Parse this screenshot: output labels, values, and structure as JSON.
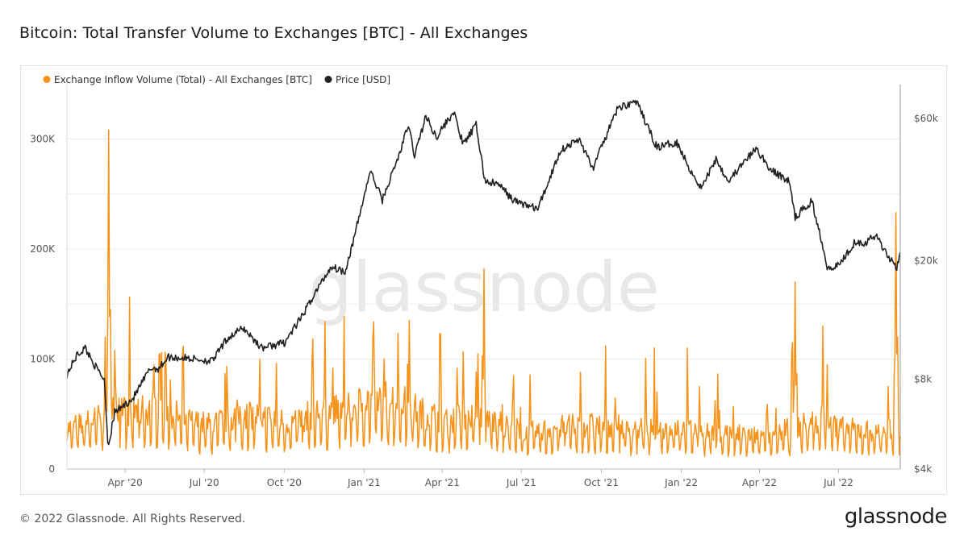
{
  "title": "Bitcoin: Total Transfer Volume to Exchanges [BTC] - All Exchanges",
  "footer": {
    "copyright": "© 2022 Glassnode. All Rights Reserved.",
    "logo_text": "glassnode"
  },
  "watermark": "glassnode",
  "colors": {
    "inflow": "#f7931a",
    "price": "#222222",
    "grid": "#ececec",
    "axis": "#bbbbbb"
  },
  "chart_data": {
    "type": "line",
    "title": "Bitcoin: Total Transfer Volume to Exchanges [BTC] - All Exchanges",
    "legend_position": "top-left",
    "grid": true,
    "x_range": [
      "2020-01-25",
      "2022-09-10"
    ],
    "x_ticks": [
      {
        "date": "2020-04-01",
        "label": "Apr '20"
      },
      {
        "date": "2020-07-01",
        "label": "Jul '20"
      },
      {
        "date": "2020-10-01",
        "label": "Oct '20"
      },
      {
        "date": "2021-01-01",
        "label": "Jan '21"
      },
      {
        "date": "2021-04-01",
        "label": "Apr '21"
      },
      {
        "date": "2021-07-01",
        "label": "Jul '21"
      },
      {
        "date": "2021-10-01",
        "label": "Oct '21"
      },
      {
        "date": "2022-01-01",
        "label": "Jan '22"
      },
      {
        "date": "2022-04-01",
        "label": "Apr '22"
      },
      {
        "date": "2022-07-01",
        "label": "Jul '22"
      }
    ],
    "y_left": {
      "scale": "linear",
      "range": [
        0,
        345000
      ],
      "ticks": [
        {
          "value": 0,
          "label": "0"
        },
        {
          "value": 100000,
          "label": "100K"
        },
        {
          "value": 200000,
          "label": "200K"
        },
        {
          "value": 300000,
          "label": "300K"
        }
      ]
    },
    "y_right": {
      "scale": "log",
      "range": [
        4000,
        75000
      ],
      "ticks": [
        {
          "value": 4000,
          "label": "$4k"
        },
        {
          "value": 8000,
          "label": "$8k"
        },
        {
          "value": 20000,
          "label": "$20k"
        },
        {
          "value": 60000,
          "label": "$60k"
        }
      ]
    },
    "series": [
      {
        "name": "Exchange Inflow Volume (Total) - All Exchanges [BTC]",
        "axis": "left",
        "color": "#f7931a",
        "base_points": [
          [
            "2020-01-25",
            35000
          ],
          [
            "2020-02-15",
            40000
          ],
          [
            "2020-03-05",
            45000
          ],
          [
            "2020-03-20",
            60000
          ],
          [
            "2020-04-10",
            48000
          ],
          [
            "2020-05-10",
            55000
          ],
          [
            "2020-06-10",
            42000
          ],
          [
            "2020-07-10",
            38000
          ],
          [
            "2020-08-10",
            48000
          ],
          [
            "2020-09-10",
            45000
          ],
          [
            "2020-10-10",
            40000
          ],
          [
            "2020-11-10",
            50000
          ],
          [
            "2020-12-10",
            50000
          ],
          [
            "2021-01-10",
            62000
          ],
          [
            "2021-02-10",
            60000
          ],
          [
            "2021-03-10",
            48000
          ],
          [
            "2021-04-10",
            42000
          ],
          [
            "2021-05-10",
            50000
          ],
          [
            "2021-06-10",
            38000
          ],
          [
            "2021-07-10",
            32000
          ],
          [
            "2021-08-10",
            36000
          ],
          [
            "2021-09-10",
            38000
          ],
          [
            "2021-10-10",
            38000
          ],
          [
            "2021-11-10",
            35000
          ],
          [
            "2021-12-10",
            36000
          ],
          [
            "2022-01-10",
            35000
          ],
          [
            "2022-02-10",
            33000
          ],
          [
            "2022-03-10",
            30000
          ],
          [
            "2022-04-10",
            28000
          ],
          [
            "2022-05-10",
            36000
          ],
          [
            "2022-06-10",
            42000
          ],
          [
            "2022-07-10",
            35000
          ],
          [
            "2022-08-10",
            33000
          ],
          [
            "2022-09-10",
            35000
          ]
        ],
        "spikes": [
          [
            "2020-03-09",
            120000
          ],
          [
            "2020-03-13",
            308000
          ],
          [
            "2020-03-15",
            145000
          ],
          [
            "2020-03-20",
            108000
          ],
          [
            "2020-05-11",
            105000
          ],
          [
            "2020-05-18",
            98000
          ],
          [
            "2020-09-03",
            100000
          ],
          [
            "2020-11-26",
            92000
          ],
          [
            "2021-01-11",
            118000
          ],
          [
            "2021-02-22",
            135000
          ],
          [
            "2021-04-18",
            92000
          ],
          [
            "2021-05-12",
            105000
          ],
          [
            "2021-05-19",
            182000
          ],
          [
            "2021-06-22",
            85000
          ],
          [
            "2021-09-07",
            88000
          ],
          [
            "2021-12-04",
            70000
          ],
          [
            "2022-01-22",
            75000
          ],
          [
            "2022-05-09",
            115000
          ],
          [
            "2022-05-12",
            170000
          ],
          [
            "2022-06-13",
            130000
          ],
          [
            "2022-06-18",
            95000
          ],
          [
            "2022-09-05",
            233000
          ],
          [
            "2022-09-07",
            120000
          ]
        ]
      },
      {
        "name": "Price [USD]",
        "axis": "right",
        "color": "#222222",
        "points": [
          [
            "2020-01-25",
            8300
          ],
          [
            "2020-02-05",
            9600
          ],
          [
            "2020-02-15",
            10200
          ],
          [
            "2020-02-28",
            8700
          ],
          [
            "2020-03-08",
            8000
          ],
          [
            "2020-03-12",
            5000
          ],
          [
            "2020-03-13",
            4850
          ],
          [
            "2020-03-20",
            6200
          ],
          [
            "2020-04-10",
            6900
          ],
          [
            "2020-04-30",
            8700
          ],
          [
            "2020-05-10",
            8700
          ],
          [
            "2020-05-20",
            9500
          ],
          [
            "2020-06-15",
            9400
          ],
          [
            "2020-07-10",
            9200
          ],
          [
            "2020-07-28",
            11000
          ],
          [
            "2020-08-15",
            11900
          ],
          [
            "2020-09-05",
            10200
          ],
          [
            "2020-10-01",
            10600
          ],
          [
            "2020-10-21",
            12900
          ],
          [
            "2020-11-05",
            15500
          ],
          [
            "2020-11-24",
            19100
          ],
          [
            "2020-12-10",
            18400
          ],
          [
            "2020-12-20",
            23500
          ],
          [
            "2021-01-08",
            40000
          ],
          [
            "2021-01-22",
            32000
          ],
          [
            "2021-02-10",
            45000
          ],
          [
            "2021-02-21",
            57000
          ],
          [
            "2021-02-28",
            45000
          ],
          [
            "2021-03-13",
            61000
          ],
          [
            "2021-03-25",
            52000
          ],
          [
            "2021-04-14",
            63000
          ],
          [
            "2021-04-25",
            49000
          ],
          [
            "2021-05-10",
            57000
          ],
          [
            "2021-05-20",
            37000
          ],
          [
            "2021-06-05",
            36000
          ],
          [
            "2021-06-22",
            31800
          ],
          [
            "2021-07-20",
            29800
          ],
          [
            "2021-08-15",
            47000
          ],
          [
            "2021-09-06",
            51000
          ],
          [
            "2021-09-21",
            40700
          ],
          [
            "2021-10-20",
            65000
          ],
          [
            "2021-11-10",
            68500
          ],
          [
            "2021-11-26",
            54000
          ],
          [
            "2021-12-04",
            48000
          ],
          [
            "2021-12-27",
            50000
          ],
          [
            "2022-01-10",
            41000
          ],
          [
            "2022-01-24",
            35000
          ],
          [
            "2022-02-10",
            44000
          ],
          [
            "2022-02-24",
            37000
          ],
          [
            "2022-03-28",
            47500
          ],
          [
            "2022-04-15",
            40000
          ],
          [
            "2022-05-05",
            37000
          ],
          [
            "2022-05-12",
            28000
          ],
          [
            "2022-05-31",
            31700
          ],
          [
            "2022-06-13",
            22500
          ],
          [
            "2022-06-18",
            19000
          ],
          [
            "2022-07-01",
            19300
          ],
          [
            "2022-07-20",
            23200
          ],
          [
            "2022-08-01",
            23000
          ],
          [
            "2022-08-14",
            24400
          ],
          [
            "2022-08-25",
            21000
          ],
          [
            "2022-09-01",
            20000
          ],
          [
            "2022-09-06",
            19000
          ],
          [
            "2022-09-10",
            21600
          ]
        ]
      }
    ]
  }
}
